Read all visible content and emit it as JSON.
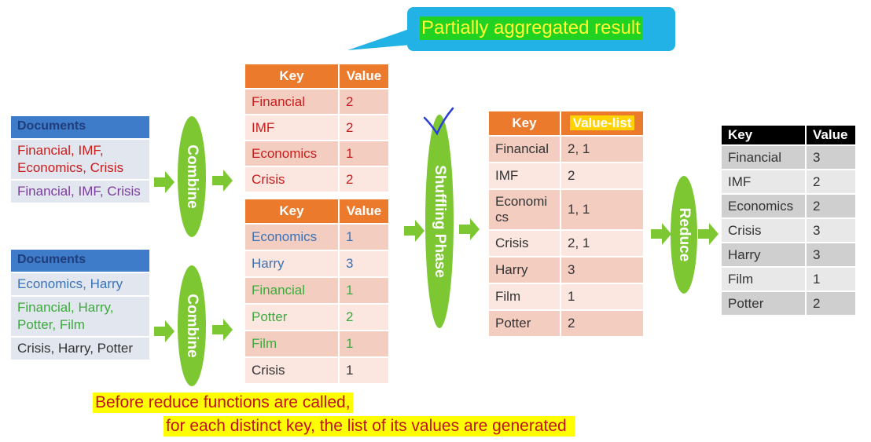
{
  "callout": {
    "text": "Partially aggregated result"
  },
  "doc_groups": [
    {
      "header": "Documents",
      "rows": [
        {
          "text": "Financial, IMF, Economics, Crisis",
          "color": "#c81e1e"
        },
        {
          "text": "Financial, IMF, Crisis",
          "color": "#7a3d9c"
        }
      ]
    },
    {
      "header": "Documents",
      "rows": [
        {
          "text": "Economics, Harry",
          "color": "#3a72b8"
        },
        {
          "text": "Financial, Harry, Potter, Film",
          "color": "#3caa3c"
        },
        {
          "text": "Crisis, Harry, Potter",
          "color": "#333333"
        }
      ]
    }
  ],
  "ovals": {
    "combine1": "Combine",
    "combine2": "Combine",
    "shuffle": "Shuffling Phase",
    "reduce": "Reduce"
  },
  "combine_table_1": {
    "headers": [
      "Key",
      "Value"
    ],
    "rows": [
      [
        "Financial",
        "2"
      ],
      [
        "IMF",
        "2"
      ],
      [
        "Economics",
        "1"
      ],
      [
        "Crisis",
        "2"
      ]
    ]
  },
  "combine_table_2": {
    "headers": [
      "Key",
      "Value"
    ],
    "rows": [
      [
        "Economics",
        "1"
      ],
      [
        "Harry",
        "3"
      ],
      [
        "Financial",
        "1"
      ],
      [
        "Potter",
        "2"
      ],
      [
        "Film",
        "1"
      ],
      [
        "Crisis",
        "1"
      ]
    ]
  },
  "shuffle_table": {
    "headers": [
      "Key",
      "Value-list"
    ],
    "rows": [
      [
        "Financial",
        "2, 1"
      ],
      [
        "IMF",
        "2"
      ],
      [
        "Economi cs",
        "1, 1"
      ],
      [
        "Crisis",
        "2, 1"
      ],
      [
        "Harry",
        "3"
      ],
      [
        "Film",
        "1"
      ],
      [
        "Potter",
        "2"
      ]
    ]
  },
  "reduce_table": {
    "headers": [
      "Key",
      "Value"
    ],
    "rows": [
      [
        "Financial",
        "3"
      ],
      [
        "IMF",
        "2"
      ],
      [
        "Economics",
        "2"
      ],
      [
        "Crisis",
        "3"
      ],
      [
        "Harry",
        "3"
      ],
      [
        "Film",
        "1"
      ],
      [
        "Potter",
        "2"
      ]
    ]
  },
  "caption": {
    "line1": "Before reduce functions are called,",
    "line2": "for each distinct key, the list of its values are generated"
  }
}
